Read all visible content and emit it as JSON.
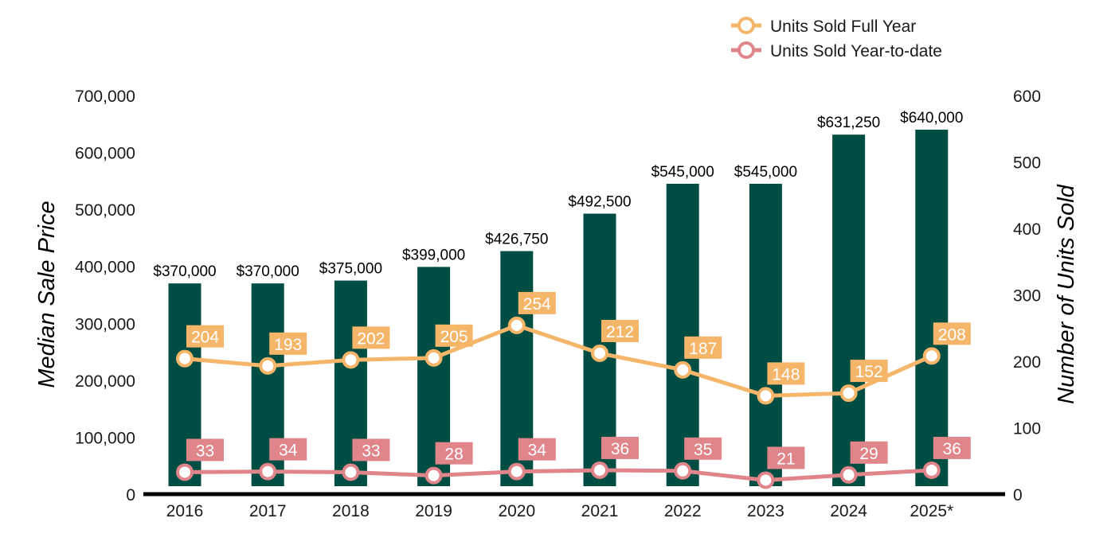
{
  "chart_data": {
    "type": "bar",
    "categories": [
      "2016",
      "2017",
      "2018",
      "2019",
      "2020",
      "2021",
      "2022",
      "2023",
      "2024",
      "2025*"
    ],
    "bar_series": {
      "values": [
        370000,
        370000,
        375000,
        399000,
        426750,
        492500,
        545000,
        545000,
        631250,
        640000
      ],
      "labels": [
        "$370,000",
        "$370,000",
        "$375,000",
        "$399,000",
        "$426,750",
        "$492,500",
        "$545,000",
        "$545,000",
        "$631,250",
        "$640,000"
      ],
      "color": "#004d44"
    },
    "line_series": [
      {
        "name": "Units Sold Full Year",
        "values": [
          204,
          193,
          202,
          205,
          254,
          212,
          187,
          148,
          152,
          208
        ],
        "color": "#f5b66a"
      },
      {
        "name": "Units Sold Year-to-date",
        "values": [
          33,
          34,
          33,
          28,
          34,
          36,
          35,
          21,
          29,
          36
        ],
        "color": "#e0858a"
      }
    ],
    "ylabel": "Median Sale Price",
    "y2label": "Number of Units Sold",
    "ylim": [
      0,
      700000
    ],
    "y2lim": [
      0,
      600
    ],
    "yticks": [
      "0",
      "100,000",
      "200,000",
      "300,000",
      "400,000",
      "500,000",
      "600,000",
      "700,000"
    ],
    "y2ticks": [
      "0",
      "100",
      "200",
      "300",
      "400",
      "500",
      "600"
    ],
    "grid": false,
    "legend_position": "top-right"
  }
}
